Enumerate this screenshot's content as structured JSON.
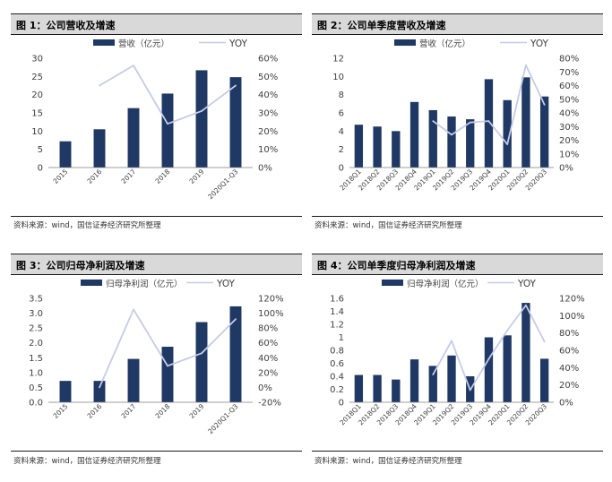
{
  "colors": {
    "bar": "#1f3864",
    "line": "#c5cbe8",
    "axis": "#7f7f7f"
  },
  "panels": [
    {
      "title": "图 1：公司营收及增速",
      "source": "资料来源：wind，国信证券经济研究所整理",
      "chart_data": {
        "type": "bar",
        "categories": [
          "2015",
          "2016",
          "2017",
          "2018",
          "2019",
          "2020Q1-Q3"
        ],
        "series": [
          {
            "name": "营收（亿元）",
            "type": "bar",
            "axis": "left",
            "values": [
              7.2,
              10.5,
              16.3,
              20.3,
              26.7,
              24.8
            ]
          },
          {
            "name": "YOY",
            "type": "line",
            "axis": "right",
            "values": [
              null,
              0.45,
              0.56,
              0.24,
              0.31,
              0.45
            ]
          }
        ],
        "ylim_left": [
          0,
          30
        ],
        "yticks_left": [
          "0",
          "5",
          "10",
          "15",
          "20",
          "25",
          "30"
        ],
        "ylim_right": [
          0,
          0.6
        ],
        "yticks_right": [
          "0%",
          "10%",
          "20%",
          "30%",
          "40%",
          "50%",
          "60%"
        ],
        "legend": "top"
      }
    },
    {
      "title": "图 2：公司单季度营收及增速",
      "source": "资料来源：wind，国信证券经济研究所整理",
      "chart_data": {
        "type": "bar",
        "categories": [
          "2018Q1",
          "2018Q2",
          "2018Q3",
          "2018Q4",
          "2019Q1",
          "2019Q2",
          "2019Q3",
          "2019Q4",
          "2020Q1",
          "2020Q2",
          "2020Q3"
        ],
        "series": [
          {
            "name": "营收（亿元）",
            "type": "bar",
            "axis": "left",
            "values": [
              4.7,
              4.5,
              4.0,
              7.2,
              6.3,
              5.6,
              5.3,
              9.7,
              7.4,
              9.9,
              7.8
            ]
          },
          {
            "name": "YOY",
            "type": "line",
            "axis": "right",
            "values": [
              null,
              null,
              null,
              null,
              0.34,
              0.24,
              0.33,
              0.34,
              0.17,
              0.75,
              0.46
            ]
          }
        ],
        "ylim_left": [
          0,
          12
        ],
        "yticks_left": [
          "0",
          "2",
          "4",
          "6",
          "8",
          "10",
          "12"
        ],
        "ylim_right": [
          0,
          0.8
        ],
        "yticks_right": [
          "0%",
          "10%",
          "20%",
          "30%",
          "40%",
          "50%",
          "60%",
          "70%",
          "80%"
        ],
        "legend": "top"
      }
    },
    {
      "title": "图 3：公司归母净利润及增速",
      "source": "资料来源：wind，国信证券经济研究所整理",
      "chart_data": {
        "type": "bar",
        "categories": [
          "2015",
          "2016",
          "2017",
          "2018",
          "2019",
          "2020Q1-Q3"
        ],
        "series": [
          {
            "name": "归母净利润（亿元）",
            "type": "bar",
            "axis": "left",
            "values": [
              0.72,
              0.72,
              1.46,
              1.87,
              2.7,
              3.23
            ]
          },
          {
            "name": "YOY",
            "type": "line",
            "axis": "right",
            "values": [
              null,
              0.0,
              1.05,
              0.29,
              0.46,
              0.92
            ]
          }
        ],
        "ylim_left": [
          0,
          3.5
        ],
        "yticks_left": [
          "0.0",
          "0.5",
          "1.0",
          "1.5",
          "2.0",
          "2.5",
          "3.0",
          "3.5"
        ],
        "ylim_right": [
          -0.2,
          1.2
        ],
        "yticks_right": [
          "-20%",
          "0%",
          "20%",
          "40%",
          "60%",
          "80%",
          "100%",
          "120%"
        ],
        "legend": "top"
      }
    },
    {
      "title": "图 4：公司单季度归母净利润及增速",
      "source": "资料来源：wind，国信证券经济研究所整理",
      "chart_data": {
        "type": "bar",
        "categories": [
          "2018Q1",
          "2018Q2",
          "2018Q3",
          "2018Q4",
          "2019Q1",
          "2019Q2",
          "2019Q3",
          "2019Q4",
          "2020Q1",
          "2020Q2",
          "2020Q3"
        ],
        "series": [
          {
            "name": "归母净利润（亿元）",
            "type": "bar",
            "axis": "left",
            "values": [
              0.42,
              0.42,
              0.35,
              0.66,
              0.56,
              0.72,
              0.4,
              1.0,
              1.03,
              1.53,
              0.67
            ]
          },
          {
            "name": "YOY",
            "type": "line",
            "axis": "right",
            "values": [
              null,
              null,
              null,
              null,
              0.32,
              0.71,
              0.14,
              0.5,
              0.83,
              1.12,
              0.7
            ]
          }
        ],
        "ylim_left": [
          0,
          1.6
        ],
        "yticks_left": [
          "0",
          "0.2",
          "0.4",
          "0.6",
          "0.8",
          "1",
          "1.2",
          "1.4",
          "1.6"
        ],
        "ylim_right": [
          0,
          1.2
        ],
        "yticks_right": [
          "0%",
          "20%",
          "40%",
          "60%",
          "80%",
          "100%",
          "120%"
        ],
        "legend": "top"
      }
    }
  ]
}
